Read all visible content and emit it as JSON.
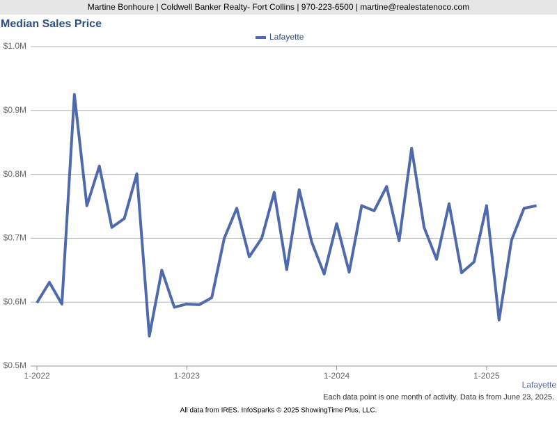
{
  "header": "Martine Bonhoure | Coldwell Banker Realty- Fort Collins | 970-223-6500 | martine@realestatenoco.com",
  "chart_data": {
    "type": "line",
    "title": "Median Sales Price",
    "x": [
      "2022-01",
      "2022-02",
      "2022-03",
      "2022-04",
      "2022-05",
      "2022-06",
      "2022-07",
      "2022-08",
      "2022-09",
      "2022-10",
      "2022-11",
      "2022-12",
      "2023-01",
      "2023-02",
      "2023-03",
      "2023-04",
      "2023-05",
      "2023-06",
      "2023-07",
      "2023-08",
      "2023-09",
      "2023-10",
      "2023-11",
      "2023-12",
      "2024-01",
      "2024-02",
      "2024-03",
      "2024-04",
      "2024-05",
      "2024-06",
      "2024-07",
      "2024-08",
      "2024-09",
      "2024-10",
      "2024-11",
      "2024-12",
      "2025-01",
      "2025-02",
      "2025-03",
      "2025-04",
      "2025-05"
    ],
    "series": [
      {
        "name": "Lafayette",
        "color": "#4f69ad",
        "values": [
          599000,
          631000,
          597000,
          925000,
          751000,
          813000,
          717000,
          731000,
          801000,
          547000,
          650000,
          592000,
          597000,
          596000,
          607000,
          700000,
          747000,
          671000,
          700000,
          772000,
          651000,
          776000,
          694000,
          644000,
          723000,
          647000,
          751000,
          743000,
          781000,
          696000,
          841000,
          717000,
          667000,
          754000,
          646000,
          663000,
          751000,
          572000,
          697000,
          747000,
          751000
        ]
      }
    ],
    "ylim": [
      500000,
      1000000
    ],
    "yticks": [
      {
        "value": 500000,
        "label": "$0.5M"
      },
      {
        "value": 600000,
        "label": "$0.6M"
      },
      {
        "value": 700000,
        "label": "$0.7M"
      },
      {
        "value": 800000,
        "label": "$0.8M"
      },
      {
        "value": 900000,
        "label": "$0.9M"
      },
      {
        "value": 1000000,
        "label": "$1.0M"
      }
    ],
    "xticks": [
      {
        "value": "2022-01",
        "label": "1-2022"
      },
      {
        "value": "2023-01",
        "label": "1-2023"
      },
      {
        "value": "2024-01",
        "label": "1-2024"
      },
      {
        "value": "2025-01",
        "label": "1-2025"
      }
    ],
    "grid": true,
    "legend": "top",
    "location_label": "Lafayette",
    "note": "Each data point is one month of activity. Data is from June 23, 2025."
  },
  "footer": "All data from IRES. InfoSparks © 2025 ShowingTime Plus, LLC."
}
